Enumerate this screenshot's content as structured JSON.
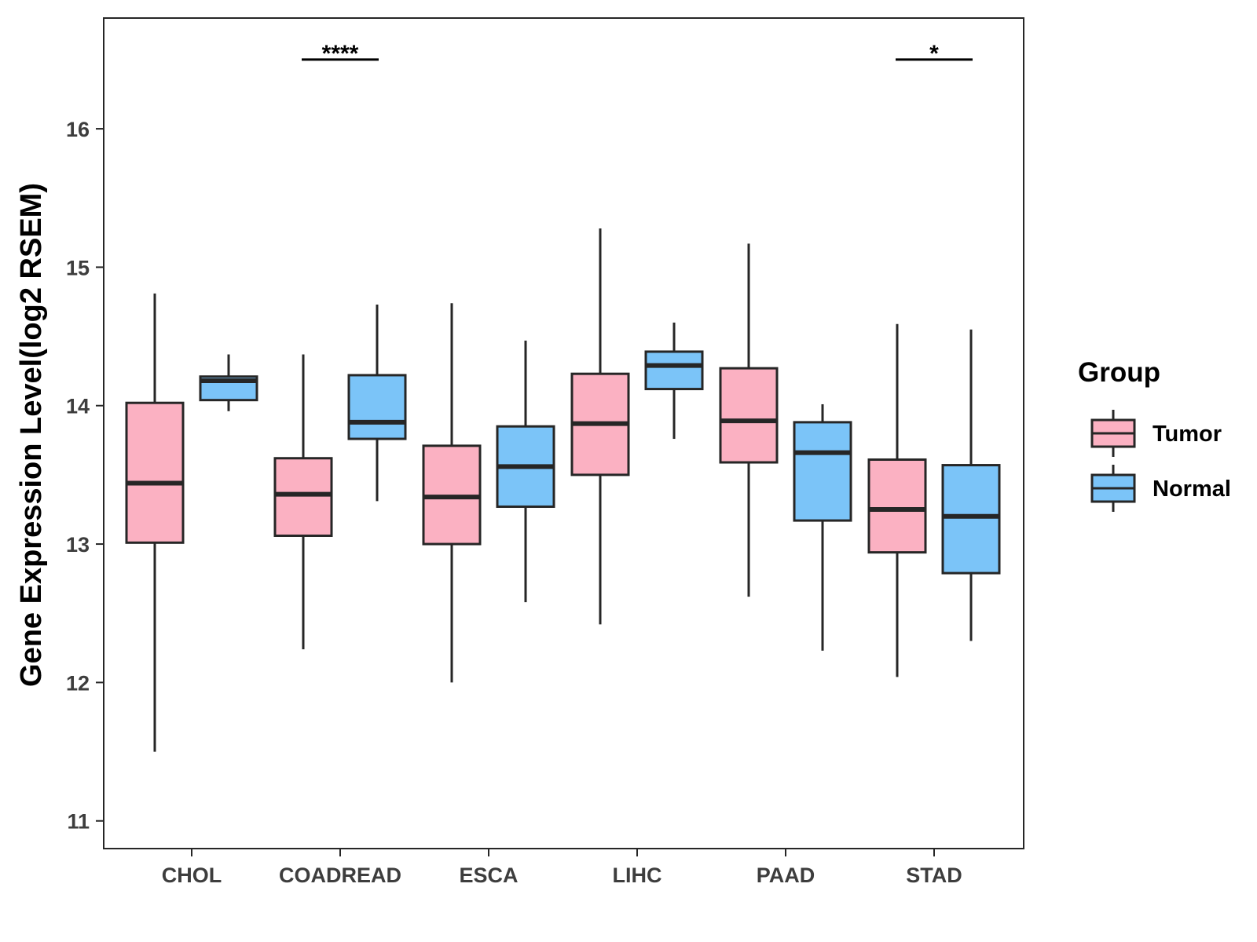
{
  "chart_data": {
    "type": "box",
    "title": "",
    "xlabel": "",
    "ylabel": "Gene Expression Level(log2 RSEM)",
    "ylim": [
      10.8,
      16.8
    ],
    "yticks": [
      11,
      12,
      13,
      14,
      15,
      16
    ],
    "categories": [
      "CHOL",
      "COADREAD",
      "ESCA",
      "LIHC",
      "PAAD",
      "STAD"
    ],
    "legend": {
      "title": "Group",
      "position": "right"
    },
    "series": [
      {
        "name": "Tumor",
        "color": "#fbb1c2",
        "boxes": [
          {
            "min": 11.5,
            "q1": 13.01,
            "median": 13.44,
            "q3": 14.02,
            "max": 14.81
          },
          {
            "min": 12.24,
            "q1": 13.06,
            "median": 13.36,
            "q3": 13.62,
            "max": 14.37
          },
          {
            "min": 12.0,
            "q1": 13.0,
            "median": 13.34,
            "q3": 13.71,
            "max": 14.74
          },
          {
            "min": 12.42,
            "q1": 13.5,
            "median": 13.87,
            "q3": 14.23,
            "max": 15.28
          },
          {
            "min": 12.62,
            "q1": 13.59,
            "median": 13.89,
            "q3": 14.27,
            "max": 15.17
          },
          {
            "min": 12.04,
            "q1": 12.94,
            "median": 13.25,
            "q3": 13.61,
            "max": 14.59
          }
        ]
      },
      {
        "name": "Normal",
        "color": "#7bc4f8",
        "boxes": [
          {
            "min": 13.96,
            "q1": 14.04,
            "median": 14.18,
            "q3": 14.21,
            "max": 14.37
          },
          {
            "min": 13.31,
            "q1": 13.76,
            "median": 13.88,
            "q3": 14.22,
            "max": 14.73
          },
          {
            "min": 12.58,
            "q1": 13.27,
            "median": 13.56,
            "q3": 13.85,
            "max": 14.47
          },
          {
            "min": 13.76,
            "q1": 14.12,
            "median": 14.29,
            "q3": 14.39,
            "max": 14.6
          },
          {
            "min": 12.23,
            "q1": 13.17,
            "median": 13.66,
            "q3": 13.88,
            "max": 14.01
          },
          {
            "min": 12.3,
            "q1": 12.79,
            "median": 13.2,
            "q3": 13.57,
            "max": 14.55
          }
        ]
      }
    ],
    "significance": [
      {
        "category": "COADREAD",
        "label": "****",
        "y": 16.5
      },
      {
        "category": "STAD",
        "label": "*",
        "y": 16.5
      }
    ]
  }
}
